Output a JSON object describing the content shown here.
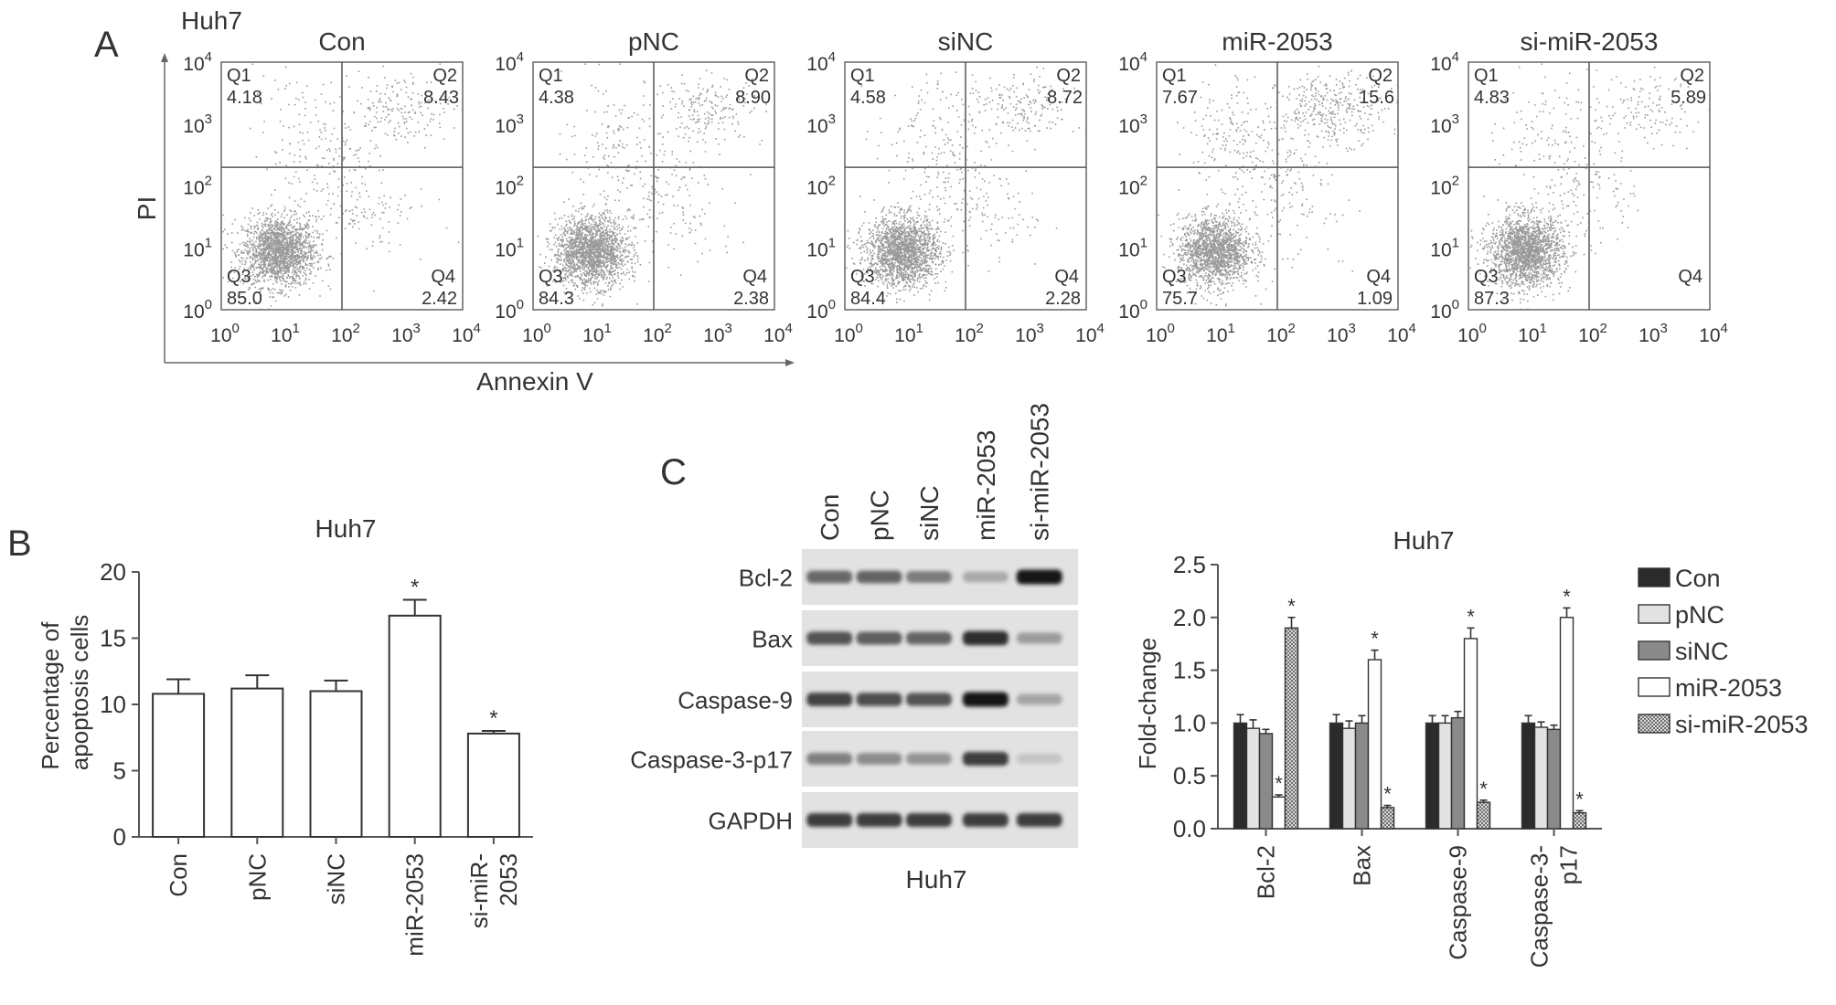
{
  "panel_labels": {
    "a": "A",
    "b": "B",
    "c": "C"
  },
  "flow": {
    "cell_line": "Huh7",
    "xlabel": "Annexin V",
    "ylabel": "PI",
    "tick_base": "10",
    "tick_exps": [
      "0",
      "1",
      "2",
      "3",
      "4"
    ],
    "quadrant_names": [
      "Q1",
      "Q2",
      "Q3",
      "Q4"
    ]
  },
  "western": {
    "caption": "Huh7",
    "lanes": [
      "Con",
      "pNC",
      "siNC",
      "miR-2053",
      "si-miR-2053"
    ],
    "proteins": [
      "Bcl-2",
      "Bax",
      "Caspase-9",
      "Caspase-3-p17",
      "GAPDH"
    ],
    "band_intensity": [
      [
        0.62,
        0.64,
        0.52,
        0.3,
        1.0
      ],
      [
        0.72,
        0.66,
        0.64,
        0.9,
        0.36
      ],
      [
        0.8,
        0.74,
        0.72,
        1.0,
        0.32
      ],
      [
        0.5,
        0.44,
        0.4,
        0.82,
        0.16
      ],
      [
        0.82,
        0.82,
        0.82,
        0.82,
        0.82
      ]
    ]
  },
  "chart_data": [
    {
      "type": "scatter",
      "plots": [
        {
          "title": "Con",
          "q1": "4.18",
          "q2": "8.43",
          "q3": "85.0",
          "q4": "2.42"
        },
        {
          "title": "pNC",
          "q1": "4.38",
          "q2": "8.90",
          "q3": "84.3",
          "q4": "2.38"
        },
        {
          "title": "siNC",
          "q1": "4.58",
          "q2": "8.72",
          "q3": "84.4",
          "q4": "2.28"
        },
        {
          "title": "miR-2053",
          "q1": "7.67",
          "q2": "15.6",
          "q3": "75.7",
          "q4": "1.09"
        },
        {
          "title": "si-miR-2053",
          "q1": "4.83",
          "q2": "5.89",
          "q3": "87.3",
          "q4": ""
        }
      ],
      "xlabel": "Annexin V",
      "ylabel": "PI",
      "xlim": [
        1,
        10000
      ],
      "ylim": [
        1,
        10000
      ],
      "xscale": "log",
      "yscale": "log"
    },
    {
      "type": "bar",
      "title": "Huh7",
      "categories": [
        "Con",
        "pNC",
        "siNC",
        "miR-2053",
        "si-miR-2053"
      ],
      "category_lines": [
        [
          "Con"
        ],
        [
          "pNC"
        ],
        [
          "siNC"
        ],
        [
          "miR-2053"
        ],
        [
          "si-miR-",
          "2053"
        ]
      ],
      "values": [
        10.8,
        11.2,
        11.0,
        16.7,
        7.8
      ],
      "errors": [
        1.1,
        1.0,
        0.8,
        1.2,
        0.2
      ],
      "significant": [
        "",
        "",
        "",
        "*",
        "*"
      ],
      "ylabel_lines": [
        "Percentage of",
        "apoptosis cells"
      ],
      "ylim": [
        0,
        20
      ],
      "yticks": [
        "0",
        "5",
        "10",
        "15",
        "20"
      ],
      "grid": false
    },
    {
      "type": "bar",
      "title": "Huh7",
      "categories": [
        "Bcl-2",
        "Bax",
        "Caspase-9",
        "Caspase-3-p17"
      ],
      "category_lines": [
        [
          "Bcl-2"
        ],
        [
          "Bax"
        ],
        [
          "Caspase-9"
        ],
        [
          "Caspase-3-",
          "p17"
        ]
      ],
      "series": [
        {
          "name": "Con",
          "values": [
            1.0,
            1.0,
            1.0,
            1.0
          ],
          "errors": [
            0.08,
            0.08,
            0.07,
            0.07
          ],
          "significant": [
            "",
            "",
            "",
            ""
          ]
        },
        {
          "name": "pNC",
          "values": [
            0.95,
            0.95,
            1.0,
            0.96
          ],
          "errors": [
            0.08,
            0.07,
            0.07,
            0.05
          ],
          "significant": [
            "",
            "",
            "",
            ""
          ]
        },
        {
          "name": "siNC",
          "values": [
            0.9,
            1.0,
            1.05,
            0.94
          ],
          "errors": [
            0.04,
            0.07,
            0.06,
            0.04
          ],
          "significant": [
            "",
            "",
            "",
            ""
          ]
        },
        {
          "name": "miR-2053",
          "values": [
            0.3,
            1.6,
            1.8,
            2.0
          ],
          "errors": [
            0.02,
            0.09,
            0.1,
            0.09
          ],
          "significant": [
            "*",
            "*",
            "*",
            "*"
          ]
        },
        {
          "name": "si-miR-2053",
          "values": [
            1.9,
            0.2,
            0.25,
            0.15
          ],
          "errors": [
            0.1,
            0.02,
            0.02,
            0.02
          ],
          "significant": [
            "*",
            "*",
            "*",
            "*"
          ]
        }
      ],
      "ylabel": "Fold-change",
      "ylim": [
        0,
        2.5
      ],
      "yticks": [
        "0.0",
        "0.5",
        "1.0",
        "1.5",
        "2.0",
        "2.5"
      ],
      "legend": "right",
      "grid": false
    }
  ]
}
